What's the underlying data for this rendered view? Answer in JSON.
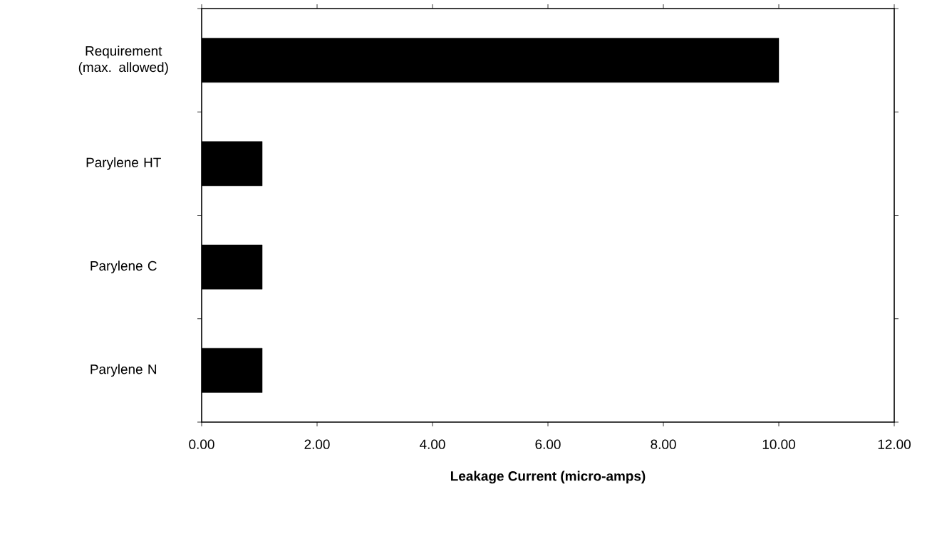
{
  "chart_data": {
    "type": "bar",
    "orientation": "horizontal",
    "categories": [
      "Requirement (max. allowed)",
      "Parylene HT",
      "Parylene C",
      "Parylene N"
    ],
    "values": [
      10.0,
      1.05,
      1.05,
      1.05
    ],
    "color": "#000000",
    "xlim": [
      0,
      12
    ],
    "xticks": [
      {
        "value": 0,
        "label": "0.00"
      },
      {
        "value": 2,
        "label": "2.00"
      },
      {
        "value": 4,
        "label": "4.00"
      },
      {
        "value": 6,
        "label": "6.00"
      },
      {
        "value": 8,
        "label": "8.00"
      },
      {
        "value": 10,
        "label": "10.00"
      },
      {
        "value": 12,
        "label": "12.00"
      }
    ],
    "xlabel": "Leakage Current (micro-amps)"
  }
}
